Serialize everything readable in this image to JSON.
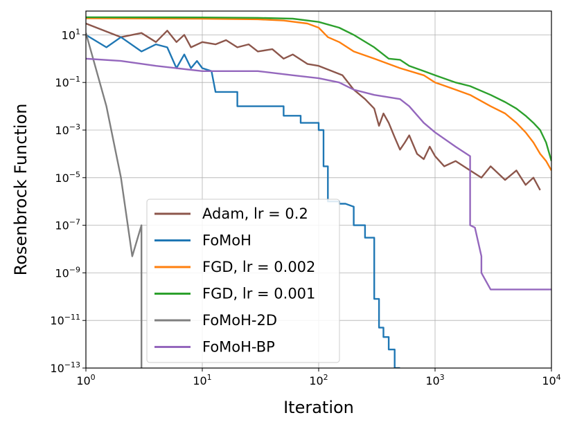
{
  "chart_data": {
    "type": "line",
    "xlabel": "Iteration",
    "ylabel": "Rosenbrock Function",
    "x_scale": "log",
    "y_scale": "log",
    "xlim": [
      1,
      10000
    ],
    "ylim": [
      1e-13,
      100
    ],
    "grid": true,
    "legend_position": "lower-left",
    "x_ticks": [
      {
        "value": 1,
        "base": "10",
        "exp": "0"
      },
      {
        "value": 10,
        "base": "10",
        "exp": "1"
      },
      {
        "value": 100,
        "base": "10",
        "exp": "2"
      },
      {
        "value": 1000,
        "base": "10",
        "exp": "3"
      },
      {
        "value": 10000,
        "base": "10",
        "exp": "4"
      }
    ],
    "y_ticks": [
      {
        "value": 10,
        "base": "10",
        "exp": "1"
      },
      {
        "value": 0.1,
        "base": "10",
        "exp": "−1"
      },
      {
        "value": 0.001,
        "base": "10",
        "exp": "−3"
      },
      {
        "value": 1e-05,
        "base": "10",
        "exp": "−5"
      },
      {
        "value": 1e-07,
        "base": "10",
        "exp": "−7"
      },
      {
        "value": 1e-09,
        "base": "10",
        "exp": "−9"
      },
      {
        "value": 1e-11,
        "base": "10",
        "exp": "−11"
      },
      {
        "value": 1e-13,
        "base": "10",
        "exp": "−13"
      }
    ],
    "series": [
      {
        "name": "Adam, lr = 0.2",
        "color": "#8c564b",
        "points": [
          [
            1,
            30
          ],
          [
            2,
            8
          ],
          [
            3,
            12
          ],
          [
            4,
            5
          ],
          [
            5,
            15
          ],
          [
            6,
            5
          ],
          [
            7,
            10
          ],
          [
            8,
            3
          ],
          [
            10,
            5
          ],
          [
            13,
            4
          ],
          [
            16,
            6
          ],
          [
            20,
            3
          ],
          [
            25,
            4
          ],
          [
            30,
            2
          ],
          [
            40,
            2.5
          ],
          [
            50,
            1
          ],
          [
            60,
            1.5
          ],
          [
            80,
            0.6
          ],
          [
            100,
            0.5
          ],
          [
            130,
            0.3
          ],
          [
            160,
            0.2
          ],
          [
            200,
            0.05
          ],
          [
            250,
            0.02
          ],
          [
            300,
            0.008
          ],
          [
            330,
            0.0015
          ],
          [
            360,
            0.005
          ],
          [
            400,
            0.002
          ],
          [
            450,
            0.0005
          ],
          [
            500,
            0.00015
          ],
          [
            550,
            0.0003
          ],
          [
            600,
            0.0006
          ],
          [
            700,
            0.0001
          ],
          [
            800,
            6e-05
          ],
          [
            900,
            0.0002
          ],
          [
            1000,
            8e-05
          ],
          [
            1200,
            3e-05
          ],
          [
            1500,
            5e-05
          ],
          [
            2000,
            2e-05
          ],
          [
            2500,
            1e-05
          ],
          [
            3000,
            3e-05
          ],
          [
            4000,
            8e-06
          ],
          [
            5000,
            2e-05
          ],
          [
            6000,
            5e-06
          ],
          [
            7000,
            1e-05
          ],
          [
            8000,
            3e-06
          ]
        ]
      },
      {
        "name": "FoMoH",
        "color": "#1f77b4",
        "points": [
          [
            1,
            10
          ],
          [
            1.5,
            3
          ],
          [
            2,
            8
          ],
          [
            3,
            2
          ],
          [
            4,
            4
          ],
          [
            5,
            3
          ],
          [
            6,
            0.4
          ],
          [
            7,
            1.5
          ],
          [
            8,
            0.4
          ],
          [
            9,
            0.8
          ],
          [
            10,
            0.4
          ],
          [
            12,
            0.3
          ],
          [
            13,
            0.04
          ],
          [
            20,
            0.04
          ],
          [
            20,
            0.01
          ],
          [
            50,
            0.01
          ],
          [
            50,
            0.004
          ],
          [
            70,
            0.004
          ],
          [
            70,
            0.002
          ],
          [
            100,
            0.002
          ],
          [
            100,
            0.001
          ],
          [
            110,
            0.001
          ],
          [
            110,
            3e-05
          ],
          [
            120,
            3e-05
          ],
          [
            120,
            1e-06
          ],
          [
            150,
            1e-06
          ],
          [
            150,
            8e-07
          ],
          [
            170,
            8e-07
          ],
          [
            200,
            6e-07
          ],
          [
            200,
            1e-07
          ],
          [
            250,
            1e-07
          ],
          [
            250,
            3e-08
          ],
          [
            300,
            3e-08
          ],
          [
            300,
            8e-11
          ],
          [
            330,
            8e-11
          ],
          [
            330,
            5e-12
          ],
          [
            360,
            5e-12
          ],
          [
            360,
            2e-12
          ],
          [
            400,
            2e-12
          ],
          [
            400,
            6e-13
          ],
          [
            450,
            6e-13
          ],
          [
            450,
            1e-13
          ],
          [
            500,
            1e-13
          ]
        ]
      },
      {
        "name": "FGD, lr = 0.002",
        "color": "#ff7f0e",
        "points": [
          [
            1,
            50
          ],
          [
            10,
            48
          ],
          [
            30,
            45
          ],
          [
            50,
            40
          ],
          [
            80,
            30
          ],
          [
            100,
            20
          ],
          [
            120,
            8
          ],
          [
            150,
            5
          ],
          [
            200,
            2
          ],
          [
            300,
            1
          ],
          [
            500,
            0.4
          ],
          [
            800,
            0.2
          ],
          [
            1000,
            0.1
          ],
          [
            1500,
            0.05
          ],
          [
            2000,
            0.03
          ],
          [
            3000,
            0.01
          ],
          [
            4000,
            0.005
          ],
          [
            5000,
            0.002
          ],
          [
            6000,
            0.0008
          ],
          [
            7000,
            0.0003
          ],
          [
            8000,
            0.0001
          ],
          [
            9000,
            5e-05
          ],
          [
            10000,
            2e-05
          ]
        ]
      },
      {
        "name": "FGD, lr = 0.001",
        "color": "#2ca02c",
        "points": [
          [
            1,
            55
          ],
          [
            10,
            54
          ],
          [
            30,
            52
          ],
          [
            60,
            48
          ],
          [
            100,
            35
          ],
          [
            150,
            20
          ],
          [
            200,
            10
          ],
          [
            300,
            3
          ],
          [
            400,
            1
          ],
          [
            500,
            0.9
          ],
          [
            600,
            0.5
          ],
          [
            800,
            0.3
          ],
          [
            1000,
            0.2
          ],
          [
            1500,
            0.1
          ],
          [
            2000,
            0.07
          ],
          [
            3000,
            0.03
          ],
          [
            4000,
            0.015
          ],
          [
            5000,
            0.008
          ],
          [
            6000,
            0.004
          ],
          [
            7000,
            0.002
          ],
          [
            8000,
            0.001
          ],
          [
            9000,
            0.0003
          ],
          [
            10000,
            5e-05
          ]
        ]
      },
      {
        "name": "FoMoH-2D",
        "color": "#7f7f7f",
        "points": [
          [
            1,
            12
          ],
          [
            1.2,
            0.5
          ],
          [
            1.5,
            0.01
          ],
          [
            2,
            1e-05
          ],
          [
            2.5,
            5e-09
          ],
          [
            3,
            1e-07
          ],
          [
            3,
            1e-13
          ]
        ]
      },
      {
        "name": "FoMoH-BP",
        "color": "#9467bd",
        "points": [
          [
            1,
            1
          ],
          [
            2,
            0.8
          ],
          [
            4,
            0.5
          ],
          [
            10,
            0.3
          ],
          [
            30,
            0.3
          ],
          [
            60,
            0.2
          ],
          [
            100,
            0.15
          ],
          [
            150,
            0.1
          ],
          [
            200,
            0.05
          ],
          [
            300,
            0.03
          ],
          [
            500,
            0.02
          ],
          [
            600,
            0.01
          ],
          [
            800,
            0.002
          ],
          [
            1000,
            0.0008
          ],
          [
            1500,
            0.0002
          ],
          [
            2000,
            8e-05
          ],
          [
            2000,
            1e-07
          ],
          [
            2200,
            8e-08
          ],
          [
            2500,
            5e-09
          ],
          [
            2500,
            1e-09
          ],
          [
            3000,
            2e-10
          ],
          [
            10000,
            2e-10
          ]
        ]
      }
    ]
  }
}
